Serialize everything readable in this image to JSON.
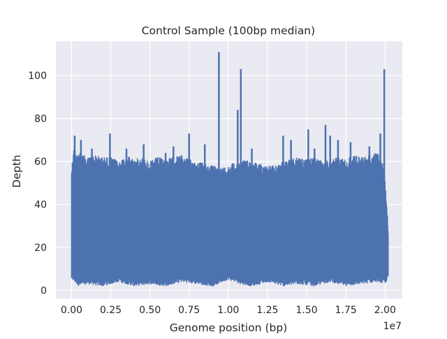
{
  "chart_data": {
    "type": "line",
    "title": "Control Sample (100bp median)",
    "xlabel": "Genome position (bp)",
    "ylabel": "Depth",
    "x_offset_label": "1e7",
    "xlim": [
      -1000000,
      21100000
    ],
    "ylim": [
      -3.8,
      116
    ],
    "xticks": [
      0,
      2500000,
      5000000,
      7500000,
      10000000,
      12500000,
      15000000,
      17500000,
      20000000
    ],
    "xtick_labels": [
      "0.00",
      "0.25",
      "0.50",
      "0.75",
      "1.00",
      "1.25",
      "1.50",
      "1.75",
      "2.00"
    ],
    "yticks": [
      0,
      20,
      40,
      60,
      80,
      100
    ],
    "ytick_labels": [
      "0",
      "20",
      "40",
      "60",
      "80",
      "100"
    ],
    "grid": true,
    "background": "#EAEAF2",
    "series": [
      {
        "color": "#4C72B0",
        "x_start": 0,
        "x_end": 20200000,
        "band_low": [
          [
            0,
            5
          ],
          [
            500000,
            2
          ],
          [
            1000000,
            3
          ],
          [
            2000000,
            2
          ],
          [
            3000000,
            4
          ],
          [
            4000000,
            2
          ],
          [
            5000000,
            3
          ],
          [
            6000000,
            2
          ],
          [
            7000000,
            4
          ],
          [
            8000000,
            3
          ],
          [
            9000000,
            2
          ],
          [
            10000000,
            5
          ],
          [
            10800000,
            3
          ],
          [
            11500000,
            2
          ],
          [
            12500000,
            4
          ],
          [
            13500000,
            2
          ],
          [
            14500000,
            3
          ],
          [
            15500000,
            2
          ],
          [
            16500000,
            4
          ],
          [
            17500000,
            2
          ],
          [
            18500000,
            3
          ],
          [
            19500000,
            4
          ],
          [
            20000000,
            3
          ],
          [
            20150000,
            5
          ]
        ],
        "band_high": [
          [
            0,
            58
          ],
          [
            150000,
            66
          ],
          [
            500000,
            64
          ],
          [
            1000000,
            62
          ],
          [
            1500000,
            63
          ],
          [
            2000000,
            62
          ],
          [
            2500000,
            62
          ],
          [
            3000000,
            60
          ],
          [
            3500000,
            63
          ],
          [
            4000000,
            61
          ],
          [
            4500000,
            62
          ],
          [
            5000000,
            60
          ],
          [
            5500000,
            62
          ],
          [
            6000000,
            61
          ],
          [
            6500000,
            62
          ],
          [
            7000000,
            63
          ],
          [
            7500000,
            61
          ],
          [
            8000000,
            60
          ],
          [
            8500000,
            59
          ],
          [
            9000000,
            58
          ],
          [
            9500000,
            57
          ],
          [
            10000000,
            58
          ],
          [
            10500000,
            60
          ],
          [
            11000000,
            61
          ],
          [
            11500000,
            60
          ],
          [
            12000000,
            59
          ],
          [
            12500000,
            58
          ],
          [
            13000000,
            58
          ],
          [
            13500000,
            60
          ],
          [
            14000000,
            61
          ],
          [
            14500000,
            62
          ],
          [
            15000000,
            61
          ],
          [
            15500000,
            62
          ],
          [
            16000000,
            60
          ],
          [
            16500000,
            61
          ],
          [
            17000000,
            62
          ],
          [
            17500000,
            61
          ],
          [
            18000000,
            63
          ],
          [
            18500000,
            62
          ],
          [
            19000000,
            63
          ],
          [
            19500000,
            64
          ],
          [
            19850000,
            60
          ],
          [
            20000000,
            52
          ],
          [
            20100000,
            43
          ],
          [
            20200000,
            30
          ]
        ],
        "peaks": [
          [
            200000,
            72
          ],
          [
            600000,
            70
          ],
          [
            1300000,
            66
          ],
          [
            2450000,
            73
          ],
          [
            3500000,
            66
          ],
          [
            4600000,
            68
          ],
          [
            6000000,
            64
          ],
          [
            6500000,
            67
          ],
          [
            7500000,
            73
          ],
          [
            8500000,
            68
          ],
          [
            9400000,
            111
          ],
          [
            10600000,
            84
          ],
          [
            10800000,
            103
          ],
          [
            11500000,
            66
          ],
          [
            13500000,
            72
          ],
          [
            14000000,
            70
          ],
          [
            15100000,
            75
          ],
          [
            15500000,
            66
          ],
          [
            16200000,
            77
          ],
          [
            16500000,
            72
          ],
          [
            17000000,
            70
          ],
          [
            17800000,
            69
          ],
          [
            19000000,
            67
          ],
          [
            19700000,
            73
          ],
          [
            19950000,
            103
          ]
        ]
      }
    ]
  }
}
